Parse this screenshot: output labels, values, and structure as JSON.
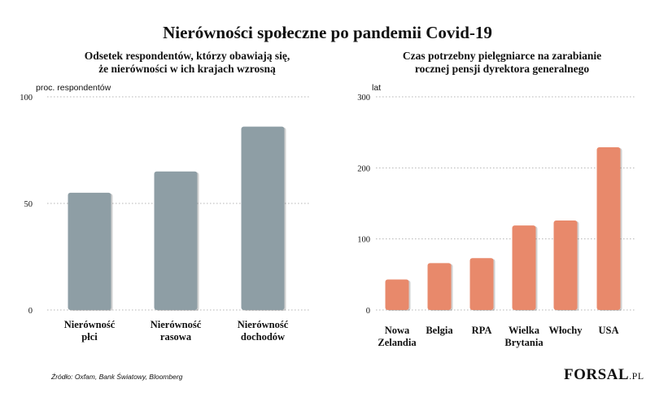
{
  "title": "Nierówności społeczne po pandemii Covid-19",
  "source": "Źródło: Oxfam, Bank Światowy, Bloomberg",
  "logo": {
    "main": "FORSAL",
    "suffix": ".PL"
  },
  "colors": {
    "left_bar": "#8e9ea5",
    "right_bar": "#e8896b",
    "grid": "#b5b5b5"
  },
  "chart_data": [
    {
      "type": "bar",
      "title": "Odsetek respondentów, którzy obawiają się, że nierówności w ich krajach wzrosną",
      "title_lines": [
        "Odsetek respondentów, którzy obawiają się,",
        "że nierówności w ich krajach wzrosną"
      ],
      "ylabel": "proc. respondentów",
      "ylim": [
        0,
        100
      ],
      "yticks": [
        0,
        50,
        100
      ],
      "categories": [
        "Nierówność płci",
        "Nierówność rasowa",
        "Nierówność dochodów"
      ],
      "category_lines": [
        [
          "Nierówność",
          "płci"
        ],
        [
          "Nierówność",
          "rasowa"
        ],
        [
          "Nierówność",
          "dochodów"
        ]
      ],
      "values": [
        55,
        65,
        86
      ],
      "grid": true
    },
    {
      "type": "bar",
      "title": "Czas potrzebny pielęgniarce na zarabianie rocznej pensji dyrektora generalnego",
      "title_lines": [
        "Czas potrzebny pielęgniarce na zarabianie",
        "rocznej pensji dyrektora generalnego"
      ],
      "ylabel": "lat",
      "ylim": [
        0,
        300
      ],
      "yticks": [
        0,
        100,
        200,
        300
      ],
      "categories": [
        "Nowa Zelandia",
        "Belgia",
        "RPA",
        "Wielka Brytania",
        "Włochy",
        "USA"
      ],
      "category_lines": [
        [
          "Nowa",
          "Zelandia"
        ],
        [
          "Belgia"
        ],
        [
          "RPA"
        ],
        [
          "Wielka",
          "Brytania"
        ],
        [
          "Włochy"
        ],
        [
          "USA"
        ]
      ],
      "values": [
        43,
        66,
        73,
        119,
        126,
        229
      ],
      "grid": true
    }
  ]
}
